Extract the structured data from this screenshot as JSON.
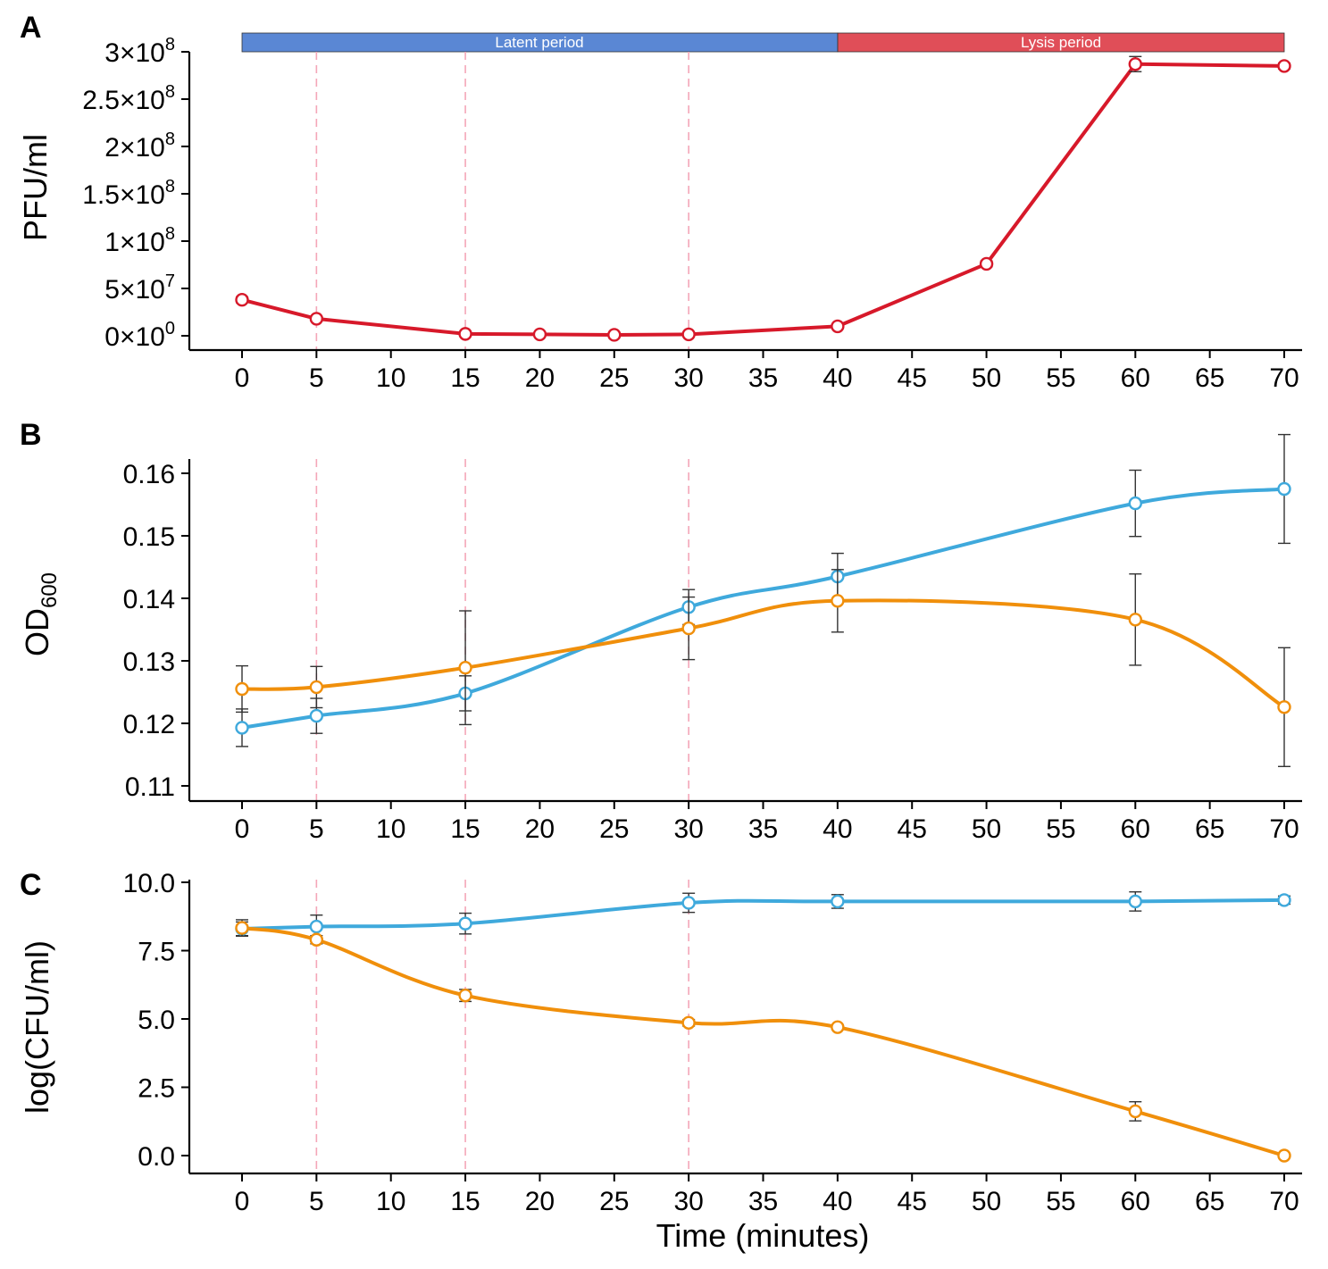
{
  "colors": {
    "red": "#d7192a",
    "blue": "#3fa9dc",
    "orange": "#f08f0b",
    "latent_band": "#5a87d4",
    "lysis_band": "#e04e58",
    "guide": "#f4a6b8",
    "errorbar": "#333333"
  },
  "phase_bar": {
    "latent": {
      "label": "Latent period",
      "start": 0,
      "end": 40
    },
    "lysis": {
      "label": "Lysis period",
      "start": 40,
      "end": 70
    }
  },
  "guide_lines_x": [
    5,
    15,
    30
  ],
  "chart_data": [
    {
      "id": "A",
      "panel_label": "A",
      "type": "line",
      "ylabel": "PFU/ml",
      "xlabel": "",
      "xlim": [
        -3.5,
        70
      ],
      "ylim": [
        -13000000.0,
        300000000.0
      ],
      "x_ticks": [
        "0",
        "5",
        "10",
        "15",
        "20",
        "25",
        "30",
        "35",
        "40",
        "45",
        "50",
        "55",
        "60",
        "65",
        "70"
      ],
      "y_ticks": [
        {
          "value": 0,
          "mantissa": "0",
          "exp": "0"
        },
        {
          "value": 50000000,
          "mantissa": "5",
          "exp": "7"
        },
        {
          "value": 100000000,
          "mantissa": "1",
          "exp": "8"
        },
        {
          "value": 150000000,
          "mantissa": "1.5",
          "exp": "8"
        },
        {
          "value": 200000000,
          "mantissa": "2",
          "exp": "8"
        },
        {
          "value": 250000000,
          "mantissa": "2.5",
          "exp": "8"
        },
        {
          "value": 300000000,
          "mantissa": "3",
          "exp": "8"
        }
      ],
      "times_symbol": "×",
      "tick_base": "10",
      "series": [
        {
          "name": "PFU",
          "color": "red",
          "x": [
            0,
            5,
            15,
            20,
            25,
            30,
            40,
            50,
            60,
            70
          ],
          "y": [
            38000000,
            18000000,
            2000000,
            1500000,
            1000000,
            1500000,
            10000000,
            76000000,
            287000000,
            285000000
          ],
          "err": [
            3000000,
            1500000,
            800000,
            500000,
            500000,
            500000,
            1000000,
            3000000,
            8000000,
            3000000
          ]
        }
      ]
    },
    {
      "id": "B",
      "panel_label": "B",
      "type": "line",
      "ylabel": "OD",
      "ylabel_sub": "600",
      "xlabel": "",
      "xlim": [
        -3.5,
        70
      ],
      "ylim": [
        0.1074,
        0.1624
      ],
      "x_ticks": [
        "0",
        "5",
        "10",
        "15",
        "20",
        "25",
        "30",
        "35",
        "40",
        "45",
        "50",
        "55",
        "60",
        "65",
        "70"
      ],
      "y_ticks": [
        "0.11",
        "0.12",
        "0.13",
        "0.14",
        "0.15",
        "0.16"
      ],
      "series": [
        {
          "name": "blue",
          "color": "blue",
          "x": [
            0,
            5,
            15,
            30,
            40,
            60,
            70
          ],
          "y": [
            0.1193,
            0.1212,
            0.1248,
            0.1386,
            0.1435,
            0.1552,
            0.1575
          ],
          "err": [
            0.003,
            0.0028,
            0.0028,
            0.0028,
            0.0037,
            0.0053,
            0.0087
          ]
        },
        {
          "name": "orange",
          "color": "orange",
          "x": [
            0,
            5,
            15,
            30,
            40,
            60,
            70
          ],
          "y": [
            0.1255,
            0.1258,
            0.1289,
            0.1352,
            0.1396,
            0.1366,
            0.1226
          ],
          "err": [
            0.0037,
            0.0033,
            0.0091,
            0.005,
            0.005,
            0.0073,
            0.0095
          ]
        }
      ]
    },
    {
      "id": "C",
      "panel_label": "C",
      "type": "line",
      "ylabel": "log(CFU/ml)",
      "xlabel": "Time (minutes)",
      "xlim": [
        -3.5,
        70
      ],
      "ylim": [
        -0.7,
        10.0
      ],
      "x_ticks": [
        "0",
        "5",
        "10",
        "15",
        "20",
        "25",
        "30",
        "35",
        "40",
        "45",
        "50",
        "55",
        "60",
        "65",
        "70"
      ],
      "y_ticks": [
        "0.0",
        "2.5",
        "5.0",
        "7.5",
        "10.0"
      ],
      "series": [
        {
          "name": "blue",
          "color": "blue",
          "x": [
            0,
            5,
            15,
            30,
            40,
            60,
            70
          ],
          "y": [
            8.3,
            8.38,
            8.49,
            9.25,
            9.3,
            9.3,
            9.35
          ],
          "err": [
            0.25,
            0.42,
            0.38,
            0.35,
            0.25,
            0.35,
            0.15
          ]
        },
        {
          "name": "orange",
          "color": "orange",
          "x": [
            0,
            5,
            15,
            30,
            40,
            60,
            70
          ],
          "y": [
            8.33,
            7.9,
            5.86,
            4.86,
            4.7,
            1.62,
            0.0
          ],
          "err": [
            0.3,
            0.15,
            0.22,
            0.12,
            0.08,
            0.35,
            0.05
          ]
        }
      ]
    }
  ]
}
